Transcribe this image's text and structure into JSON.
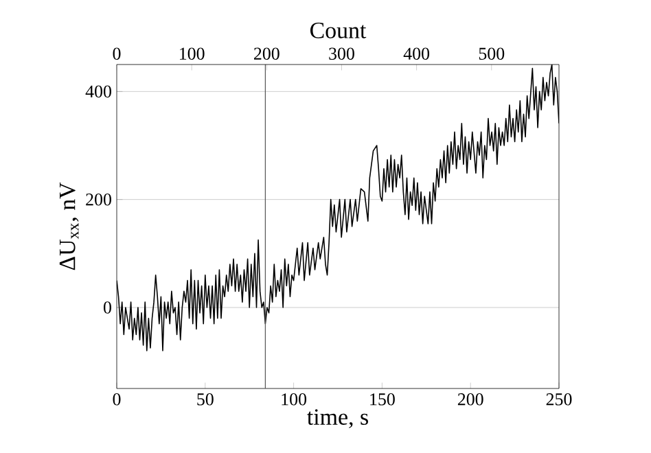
{
  "chart_data": {
    "type": "line",
    "xlabel": "time, s",
    "ylabel": "ΔU$_{xx}$, nV",
    "x2label": "Count",
    "xlim": [
      0,
      250
    ],
    "xticks": [
      0,
      50,
      100,
      150,
      200,
      250
    ],
    "ylim": [
      -150,
      450
    ],
    "yticks": [
      0,
      200,
      400
    ],
    "x2lim": [
      0,
      590
    ],
    "x2ticks": [
      0,
      100,
      200,
      300,
      400,
      500
    ],
    "grid": "y",
    "marker": "none",
    "line_style": "solid",
    "ref_lines": [
      {
        "axis": "x",
        "value": 84,
        "color": "#555555"
      }
    ],
    "series": [
      {
        "color": "#000000",
        "x": [
          0,
          1,
          2,
          3,
          4,
          5,
          6,
          7,
          8,
          9,
          10,
          11,
          12,
          13,
          14,
          15,
          16,
          17,
          18,
          19,
          20,
          21,
          22,
          23,
          24,
          25,
          26,
          27,
          28,
          29,
          30,
          31,
          32,
          33,
          34,
          35,
          36,
          37,
          38,
          39,
          40,
          41,
          42,
          43,
          44,
          45,
          46,
          47,
          48,
          49,
          50,
          51,
          52,
          53,
          54,
          55,
          56,
          57,
          58,
          59,
          60,
          61,
          62,
          63,
          64,
          65,
          66,
          67,
          68,
          69,
          70,
          71,
          72,
          73,
          74,
          75,
          76,
          77,
          78,
          79,
          80,
          81,
          82,
          83,
          84,
          85,
          86,
          87,
          88,
          89,
          90,
          91,
          92,
          93,
          94,
          95,
          96,
          97,
          98,
          99,
          100,
          102,
          103,
          105,
          106,
          108,
          109,
          111,
          112,
          114,
          115,
          117,
          118,
          119,
          120,
          121,
          122,
          123,
          124,
          126,
          127,
          129,
          130,
          132,
          133,
          135,
          136,
          138,
          140,
          142,
          143,
          145,
          147,
          148,
          149,
          150,
          151,
          152,
          153,
          154,
          155,
          156,
          157,
          158,
          159,
          160,
          161,
          162,
          163,
          164,
          165,
          166,
          167,
          168,
          169,
          170,
          171,
          172,
          173,
          174,
          175,
          176,
          177,
          178,
          179,
          180,
          181,
          182,
          183,
          184,
          185,
          186,
          187,
          188,
          189,
          190,
          191,
          192,
          193,
          194,
          195,
          196,
          197,
          198,
          199,
          200,
          201,
          203,
          204,
          205,
          206,
          207,
          208,
          209,
          210,
          211,
          212,
          213,
          214,
          215,
          216,
          217,
          218,
          219,
          220,
          221,
          222,
          223,
          224,
          225,
          226,
          227,
          228,
          229,
          230,
          231,
          232,
          233,
          235,
          236,
          237,
          238,
          239,
          240,
          241,
          242,
          243,
          244,
          245,
          246,
          247,
          248,
          249,
          250
        ],
        "values": [
          50,
          20,
          -30,
          10,
          -50,
          0,
          -20,
          -40,
          10,
          -60,
          -20,
          -50,
          0,
          -60,
          -10,
          -70,
          10,
          -80,
          -20,
          -75,
          -20,
          10,
          60,
          20,
          -30,
          20,
          -80,
          10,
          -20,
          10,
          -30,
          30,
          -10,
          0,
          -50,
          10,
          -60,
          0,
          30,
          10,
          50,
          -20,
          70,
          -30,
          50,
          -40,
          50,
          -10,
          40,
          -30,
          60,
          0,
          40,
          -20,
          40,
          -30,
          60,
          -20,
          70,
          -20,
          40,
          20,
          60,
          30,
          80,
          40,
          90,
          30,
          80,
          30,
          60,
          10,
          70,
          30,
          90,
          0,
          80,
          20,
          100,
          0,
          125,
          30,
          0,
          10,
          -30,
          0,
          -10,
          40,
          10,
          80,
          20,
          50,
          30,
          70,
          0,
          90,
          40,
          80,
          20,
          60,
          50,
          110,
          60,
          120,
          50,
          120,
          60,
          110,
          70,
          120,
          90,
          130,
          80,
          60,
          120,
          200,
          150,
          190,
          140,
          200,
          130,
          200,
          140,
          200,
          150,
          200,
          160,
          220,
          214,
          160,
          240,
          290,
          300,
          257,
          206,
          197,
          257,
          214,
          274,
          223,
          282,
          214,
          274,
          223,
          265,
          240,
          282,
          214,
          172,
          240,
          163,
          214,
          189,
          240,
          180,
          231,
          172,
          214,
          155,
          206,
          180,
          155,
          214,
          155,
          231,
          197,
          257,
          223,
          274,
          240,
          290,
          231,
          300,
          249,
          307,
          265,
          325,
          257,
          300,
          274,
          341,
          265,
          316,
          249,
          307,
          274,
          325,
          249,
          307,
          282,
          325,
          240,
          300,
          274,
          350,
          300,
          325,
          290,
          341,
          265,
          333,
          300,
          325,
          300,
          350,
          307,
          375,
          316,
          350,
          307,
          366,
          325,
          383,
          307,
          358,
          316,
          392,
          350,
          443,
          366,
          409,
          333,
          400,
          366,
          426,
          383,
          417,
          392,
          434,
          450,
          375,
          426,
          400,
          341
        ]
      }
    ]
  }
}
